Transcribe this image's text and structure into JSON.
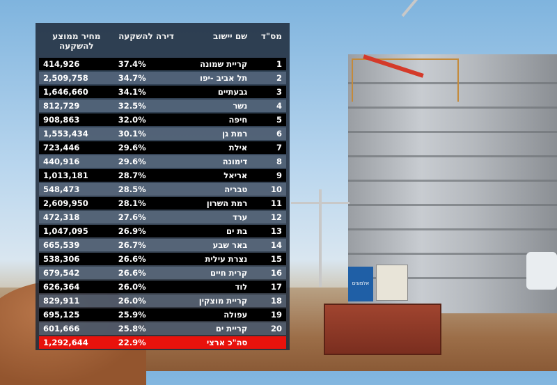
{
  "table": {
    "headers": {
      "num": "מס\"ד",
      "city": "שם יישוב",
      "investment": "דירה להשקעה",
      "price": "מחיר ממוצע להשקעה"
    },
    "rows": [
      {
        "num": "1",
        "city": "קריית שמונה",
        "pct": "37.4%",
        "price": "414,926"
      },
      {
        "num": "2",
        "city": "תל אביב -יפו",
        "pct": "34.7%",
        "price": "2,509,758"
      },
      {
        "num": "3",
        "city": "גבעתיים",
        "pct": "34.1%",
        "price": "1,646,660"
      },
      {
        "num": "4",
        "city": "נשר",
        "pct": "32.5%",
        "price": "812,729"
      },
      {
        "num": "5",
        "city": "חיפה",
        "pct": "32.0%",
        "price": "908,863"
      },
      {
        "num": "6",
        "city": "רמת גן",
        "pct": "30.1%",
        "price": "1,553,434"
      },
      {
        "num": "7",
        "city": "אילת",
        "pct": "29.6%",
        "price": "723,446"
      },
      {
        "num": "8",
        "city": "דימונה",
        "pct": "29.6%",
        "price": "440,916"
      },
      {
        "num": "9",
        "city": "אריאל",
        "pct": "28.7%",
        "price": "1,013,181"
      },
      {
        "num": "10",
        "city": "טבריה",
        "pct": "28.5%",
        "price": "548,473"
      },
      {
        "num": "11",
        "city": "רמת השרון",
        "pct": "28.1%",
        "price": "2,609,950"
      },
      {
        "num": "12",
        "city": "ערד",
        "pct": "27.6%",
        "price": "472,318"
      },
      {
        "num": "13",
        "city": "בת ים",
        "pct": "26.9%",
        "price": "1,047,095"
      },
      {
        "num": "14",
        "city": "באר שבע",
        "pct": "26.7%",
        "price": "665,539"
      },
      {
        "num": "15",
        "city": "נצרת עילית",
        "pct": "26.6%",
        "price": "538,306"
      },
      {
        "num": "16",
        "city": "קרית חיים",
        "pct": "26.6%",
        "price": "679,542"
      },
      {
        "num": "17",
        "city": "לוד",
        "pct": "26.0%",
        "price": "626,364"
      },
      {
        "num": "18",
        "city": "קריית מוצקין",
        "pct": "26.0%",
        "price": "829,911"
      },
      {
        "num": "19",
        "city": "עפולה",
        "pct": "25.9%",
        "price": "695,125"
      },
      {
        "num": "20",
        "city": "קריית ים",
        "pct": "25.8%",
        "price": "601,666"
      }
    ],
    "total": {
      "num": "",
      "city": "סה\"כ ארצי",
      "pct": "22.9%",
      "price": "1,292,644"
    }
  },
  "colors": {
    "row_dark": "#000000",
    "row_light": "#8ca0b9",
    "total_row": "#e8120c",
    "panel": "#1e2a3a"
  },
  "background_signage": {
    "banner_text": "אלמוגים"
  }
}
